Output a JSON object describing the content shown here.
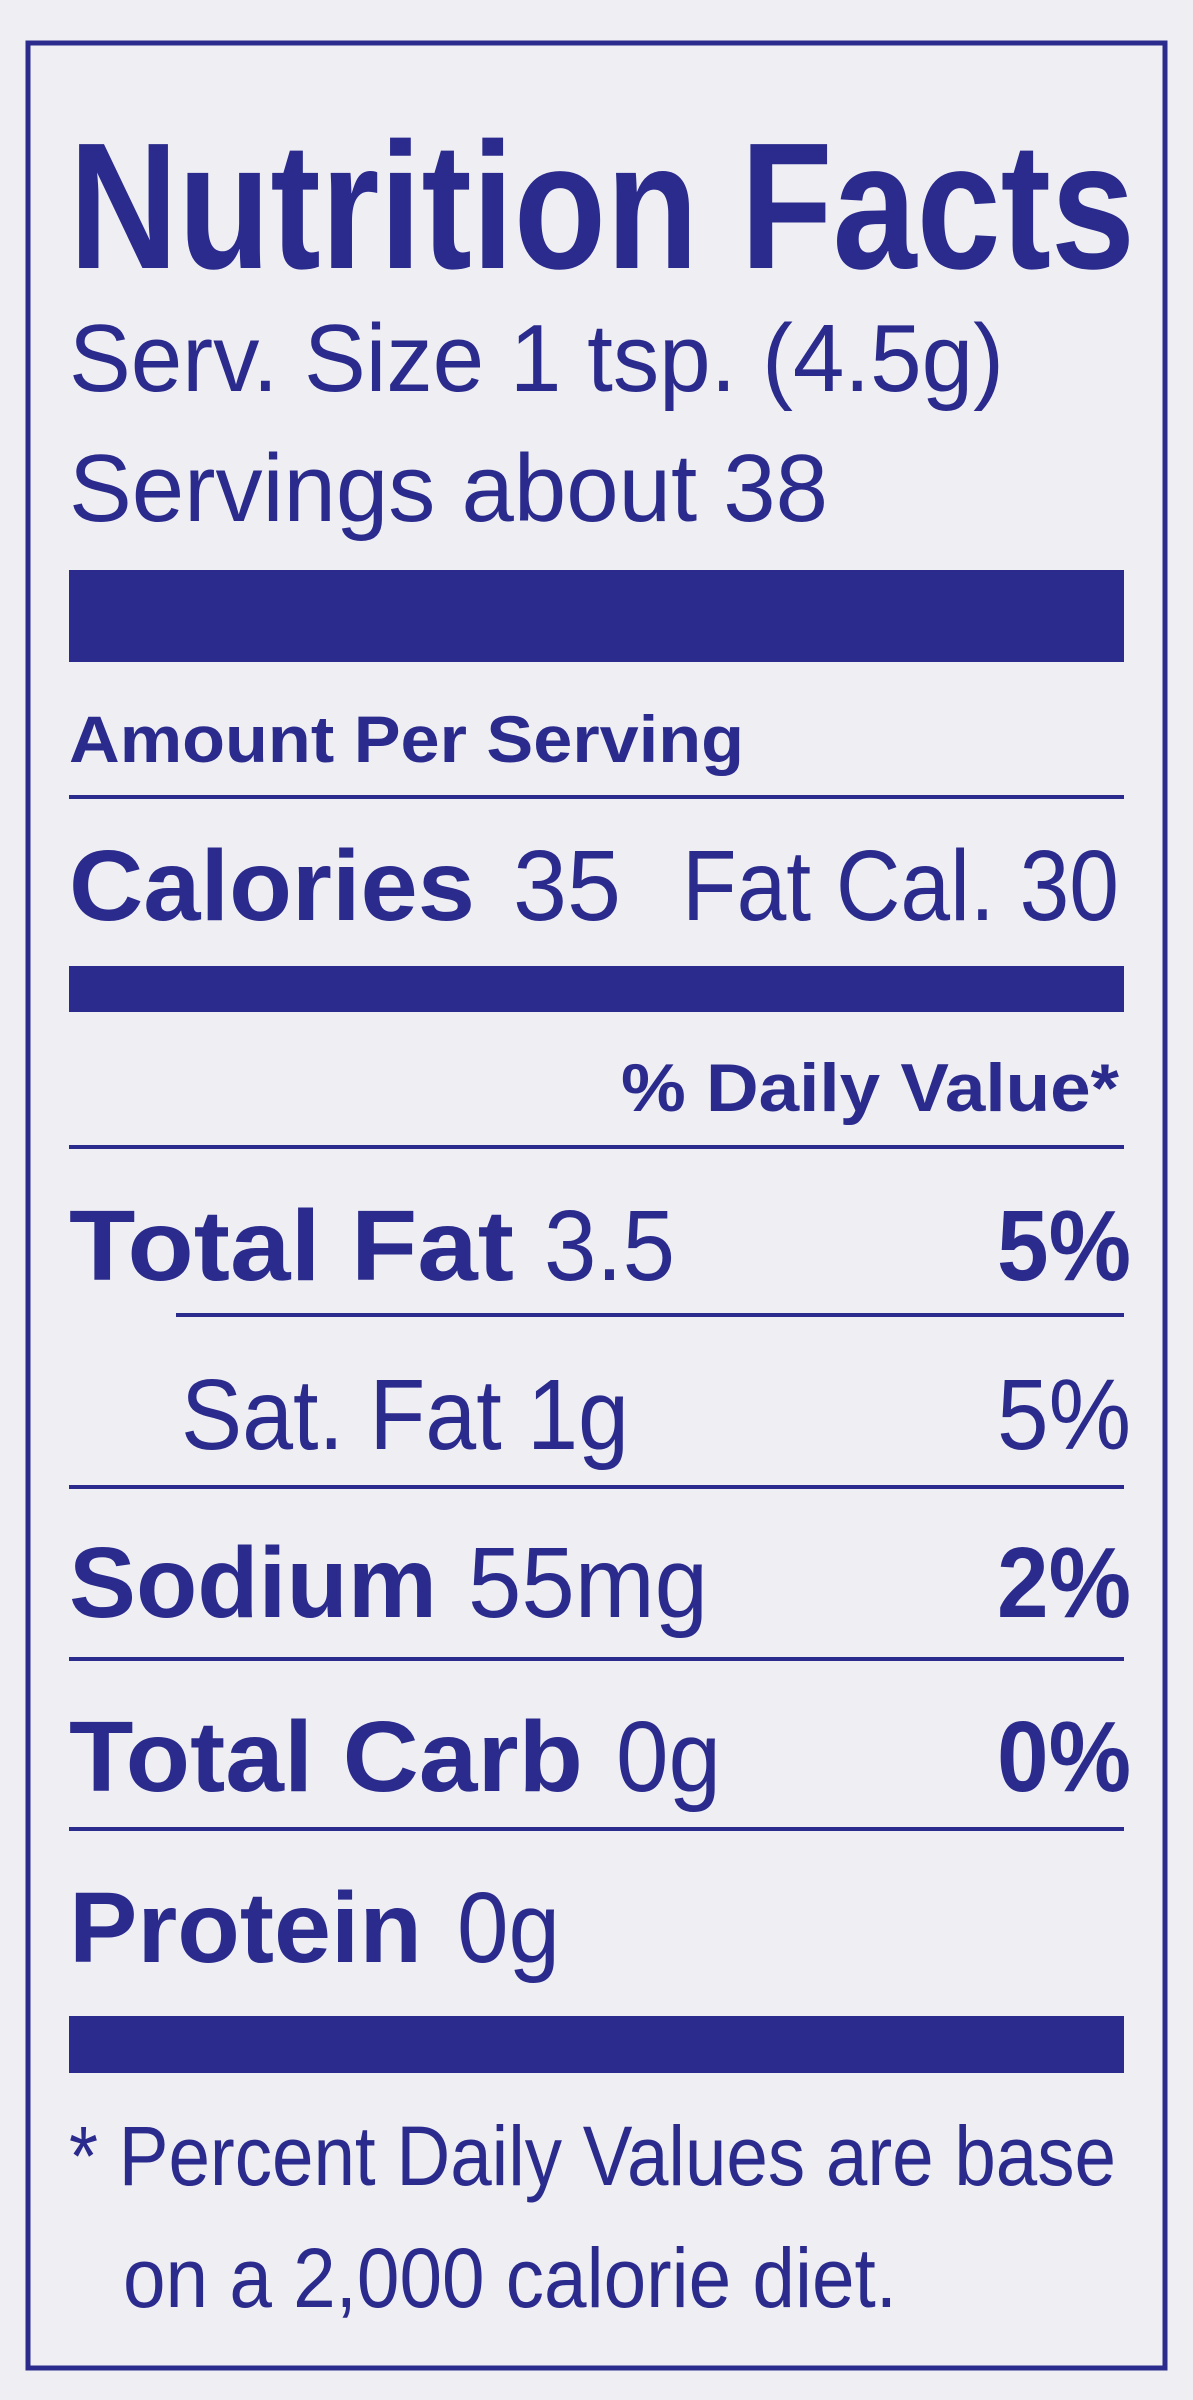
{
  "header": {
    "title": "Nutrition Facts",
    "serving_size": "Serv. Size 1 tsp. (4.5g)",
    "servings": "Servings about 38"
  },
  "amount_per_serving": "Amount Per Serving",
  "calories": {
    "label": "Calories",
    "value": "35",
    "fat_calories": "Fat Cal. 30"
  },
  "daily_value_header": "% Daily Value*",
  "rows": [
    {
      "label": "Total Fat",
      "amount": "3.5",
      "dv": "5%"
    },
    {
      "label": "Sat. Fat 1g",
      "dv": "5%"
    },
    {
      "label": "Sodium",
      "amount": "55mg",
      "dv": "2%"
    },
    {
      "label": "Total Carb",
      "amount": "0g",
      "dv": "0%"
    },
    {
      "label": "Protein",
      "amount": "0g"
    }
  ],
  "footnote": [
    "* Percent Daily Values are base",
    "on a 2,000 calorie diet."
  ]
}
